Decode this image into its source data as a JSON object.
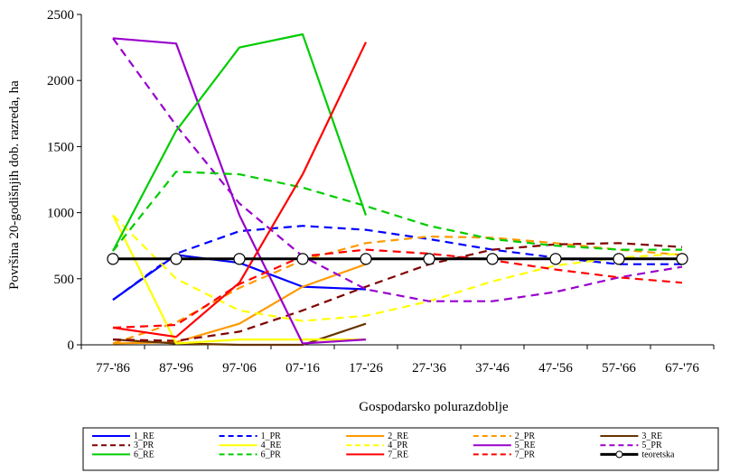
{
  "chart_data": {
    "type": "line",
    "title": "",
    "xlabel": "Gospodarsko polurazdoblje",
    "ylabel": "Površina 20-godišnjih dob. razreda, ha",
    "categories": [
      "77-'86",
      "87-'96",
      "97-'06",
      "07-'16",
      "17-'26",
      "27-'36",
      "37-'46",
      "47-'56",
      "57-'66",
      "67-'76"
    ],
    "ylim": [
      0,
      2500
    ],
    "yticks": [
      "0",
      "500",
      "1000",
      "1500",
      "2000",
      "2500"
    ],
    "grid": false,
    "legend_position": "bottom",
    "series": [
      {
        "name": "1_RE",
        "color": "#0000ff",
        "dash": "solid",
        "values": [
          340,
          680,
          620,
          440,
          420,
          null,
          null,
          null,
          null,
          null
        ]
      },
      {
        "name": "1_PR",
        "color": "#0000ff",
        "dash": "dashed",
        "values": [
          340,
          690,
          860,
          900,
          870,
          800,
          720,
          660,
          610,
          610
        ]
      },
      {
        "name": "2_RE",
        "color": "#ff9900",
        "dash": "solid",
        "values": [
          10,
          20,
          160,
          440,
          610,
          null,
          null,
          null,
          null,
          null
        ]
      },
      {
        "name": "2_PR",
        "color": "#ff9900",
        "dash": "dashed",
        "values": [
          10,
          170,
          430,
          640,
          770,
          820,
          810,
          770,
          720,
          680
        ]
      },
      {
        "name": "3_RE",
        "color": "#663300",
        "dash": "solid",
        "values": [
          40,
          10,
          0,
          0,
          160,
          null,
          null,
          null,
          null,
          null
        ]
      },
      {
        "name": "3_PR",
        "color": "#800000",
        "dash": "dashed",
        "values": [
          40,
          30,
          100,
          260,
          440,
          610,
          720,
          760,
          770,
          740
        ]
      },
      {
        "name": "4_RE",
        "color": "#ffff00",
        "dash": "solid",
        "values": [
          980,
          10,
          40,
          40,
          40,
          null,
          null,
          null,
          null,
          null
        ]
      },
      {
        "name": "4_PR",
        "color": "#ffff00",
        "dash": "dashed",
        "values": [
          980,
          500,
          260,
          180,
          220,
          330,
          480,
          600,
          660,
          690
        ]
      },
      {
        "name": "5_RE",
        "color": "#9900cc",
        "dash": "solid",
        "values": [
          2320,
          2280,
          980,
          10,
          40,
          null,
          null,
          null,
          null,
          null
        ]
      },
      {
        "name": "5_PR",
        "color": "#9900cc",
        "dash": "dashed",
        "values": [
          2320,
          1660,
          1070,
          670,
          420,
          330,
          330,
          400,
          510,
          590
        ]
      },
      {
        "name": "6_RE",
        "color": "#00cc00",
        "dash": "solid",
        "values": [
          710,
          1620,
          2250,
          2350,
          980,
          null,
          null,
          null,
          null,
          null
        ]
      },
      {
        "name": "6_PR",
        "color": "#00cc00",
        "dash": "dashed",
        "values": [
          710,
          1310,
          1290,
          1190,
          1050,
          900,
          800,
          750,
          720,
          720
        ]
      },
      {
        "name": "7_RE",
        "color": "#ff0000",
        "dash": "solid",
        "values": [
          130,
          60,
          470,
          1290,
          2290,
          null,
          null,
          null,
          null,
          null
        ]
      },
      {
        "name": "7_PR",
        "color": "#ff0000",
        "dash": "dashed",
        "values": [
          130,
          150,
          460,
          670,
          720,
          690,
          640,
          570,
          510,
          470
        ]
      },
      {
        "name": "teoretska",
        "color": "#000000",
        "dash": "solid",
        "marker": "circle",
        "values": [
          650,
          650,
          650,
          650,
          650,
          650,
          650,
          650,
          650,
          650
        ]
      }
    ]
  }
}
